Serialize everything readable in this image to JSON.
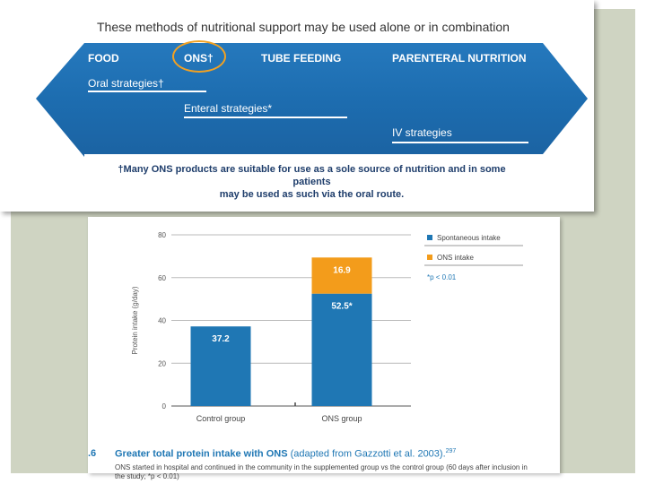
{
  "diagram": {
    "title": "These methods of nutritional support may be used alone or in combination",
    "categories": [
      "FOOD",
      "ONS†",
      "TUBE FEEDING",
      "PARENTERAL NUTRITION"
    ],
    "strategies": {
      "oral": "Oral strategies†",
      "enteral": "Enteral strategies*",
      "iv": "IV strategies"
    },
    "footnote_line1": "†Many ONS products are suitable for use as a sole source of nutrition and in some patients",
    "footnote_line2": "may be used as such via the oral route.",
    "colors": {
      "arrow": "#1f6fb2",
      "highlight": "#f2a122"
    }
  },
  "chart_data": {
    "type": "bar",
    "stacked": true,
    "categories": [
      "Control group",
      "ONS group"
    ],
    "series": [
      {
        "name": "Spontaneous intake",
        "values": [
          37.2,
          52.5
        ],
        "labels": [
          "37.2",
          "52.5*"
        ],
        "color": "#1f77b4"
      },
      {
        "name": "ONS intake",
        "values": [
          0,
          16.9
        ],
        "labels": [
          "",
          "16.9"
        ],
        "color": "#f39c1b"
      }
    ],
    "ylabel": "Protein intake (g/day)",
    "ylim": [
      0,
      80
    ],
    "yticks": [
      0,
      20,
      40,
      60,
      80
    ],
    "grid": true,
    "legend": "right",
    "annotation": "*p < 0.01"
  },
  "caption": {
    "number": ".6",
    "title_bold": "Greater total protein intake with ONS",
    "title_rest": " (adapted from Gazzotti et al. 2003).",
    "ref": "297",
    "body": "ONS started in hospital and continued in the community in the supplemented group vs the control group (60 days after inclusion in the study; *p < 0.01)"
  }
}
